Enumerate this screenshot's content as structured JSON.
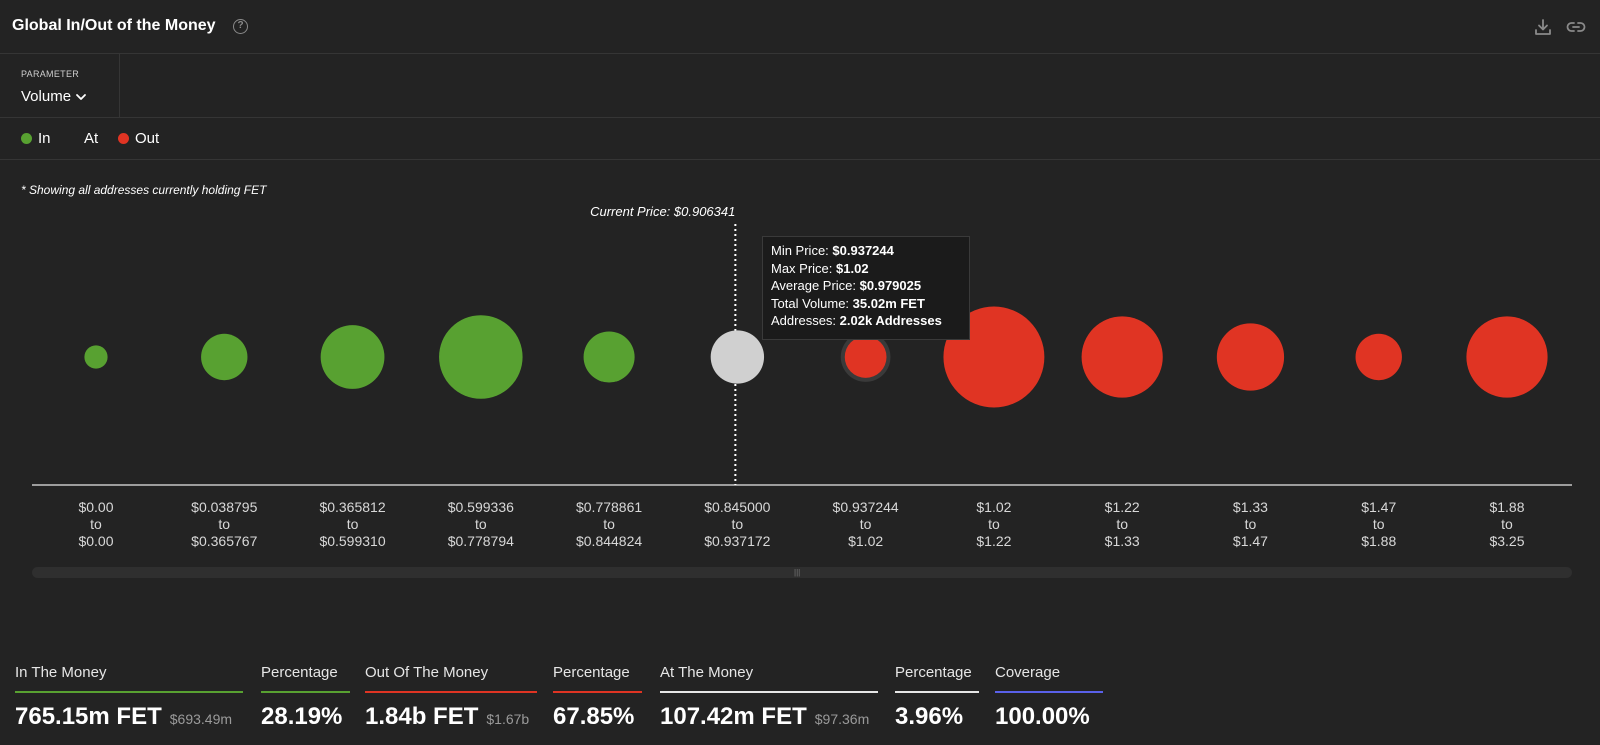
{
  "header": {
    "title": "Global In/Out of the Money",
    "help_icon": "?",
    "icons": [
      "download-icon",
      "link-icon"
    ]
  },
  "parameter": {
    "label": "PARAMETER",
    "value": "Volume"
  },
  "legend": {
    "in": "In",
    "at": "At",
    "out": "Out"
  },
  "note": "* Showing all addresses currently holding FET",
  "colors": {
    "in": "#58a131",
    "at": "#d0d0d0",
    "out": "#e03423",
    "coverage": "#5a61ea",
    "background": "#232323"
  },
  "chart_data": {
    "type": "bubble",
    "current_price_label": "Current Price: $0.906341",
    "current_price_index": 5,
    "categories": [
      {
        "from": "$0.00",
        "to": "$0.00",
        "status": "in",
        "size": 1.0
      },
      {
        "from": "$0.038795",
        "to": "$0.365767",
        "status": "in",
        "size": 2.0
      },
      {
        "from": "$0.365812",
        "to": "$0.599310",
        "status": "in",
        "size": 2.75
      },
      {
        "from": "$0.599336",
        "to": "$0.778794",
        "status": "in",
        "size": 3.6
      },
      {
        "from": "$0.778861",
        "to": "$0.844824",
        "status": "in",
        "size": 2.2
      },
      {
        "from": "$0.845000",
        "to": "$0.937172",
        "status": "at",
        "size": 2.3
      },
      {
        "from": "$0.937244",
        "to": "$1.02",
        "status": "out",
        "size": 1.8
      },
      {
        "from": "$1.02",
        "to": "$1.22",
        "status": "out",
        "size": 4.35
      },
      {
        "from": "$1.22",
        "to": "$1.33",
        "status": "out",
        "size": 3.5
      },
      {
        "from": "$1.33",
        "to": "$1.47",
        "status": "out",
        "size": 2.9
      },
      {
        "from": "$1.47",
        "to": "$1.88",
        "status": "out",
        "size": 2.0
      },
      {
        "from": "$1.88",
        "to": "$3.25",
        "status": "out",
        "size": 3.5
      }
    ],
    "hovered_index": 6,
    "to_word": "to"
  },
  "tooltip": {
    "min_label": "Min Price: ",
    "min_value": "$0.937244",
    "max_label": "Max Price: ",
    "max_value": "$1.02",
    "avg_label": "Average Price: ",
    "avg_value": "$0.979025",
    "vol_label": "Total Volume: ",
    "vol_value": "35.02m FET",
    "addr_label": "Addresses: ",
    "addr_value": "2.02k Addresses"
  },
  "scrollbar": {
    "grip": "|||"
  },
  "stats": {
    "in_label": "In The Money",
    "in_value": "765.15m FET",
    "in_usd": "$693.49m",
    "in_pct_label": "Percentage",
    "in_pct": "28.19%",
    "out_label": "Out Of The Money",
    "out_value": "1.84b FET",
    "out_usd": "$1.67b",
    "out_pct_label": "Percentage",
    "out_pct": "67.85%",
    "at_label": "At The Money",
    "at_value": "107.42m FET",
    "at_usd": "$97.36m",
    "at_pct_label": "Percentage",
    "at_pct": "3.96%",
    "coverage_label": "Coverage",
    "coverage_value": "100.00%"
  }
}
